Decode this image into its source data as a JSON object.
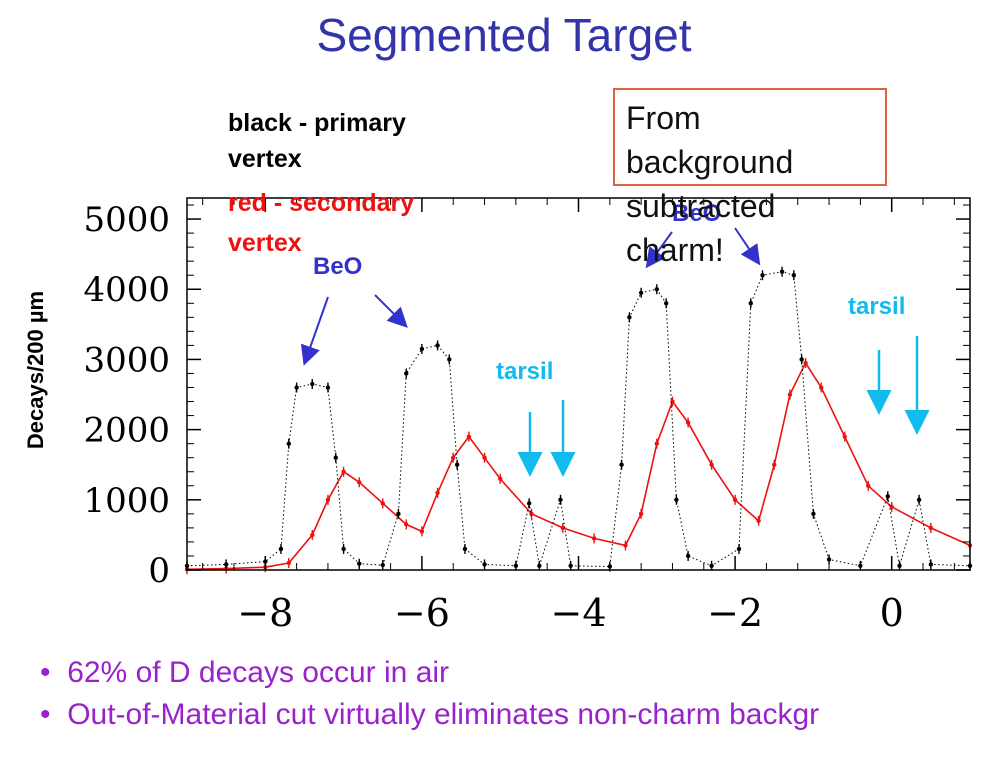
{
  "title": "Segmented Target",
  "legend": {
    "black_line1": "black - primary",
    "black_line2": "vertex",
    "red_line1": "red - secondary",
    "red_line2": "vertex"
  },
  "callout": [
    "From",
    "background",
    "subtracted",
    "charm!"
  ],
  "bullets": [
    "62% of D decays occur in air",
    "Out-of-Material cut virtually eliminates non-charm backgr"
  ],
  "colors": {
    "title": "#3333aa",
    "primary": "#000000",
    "secondary": "#ee1111",
    "beo": "#3333cc",
    "tarsil": "#11bbee",
    "bullet": "#9922cc"
  },
  "chart_data": {
    "type": "scatter",
    "title": "",
    "xlabel": "",
    "ylabel": "Decays/200 µm",
    "xlim": [
      -9,
      1
    ],
    "ylim": [
      0,
      5300
    ],
    "x_ticks": [
      -8,
      -6,
      -4,
      -2,
      0
    ],
    "x_tick_labels": [
      "−8",
      "−6",
      "−4",
      "−2",
      "0"
    ],
    "y_ticks": [
      0,
      1000,
      2000,
      3000,
      4000,
      5000
    ],
    "y_tick_labels": [
      "0",
      "1000",
      "2000",
      "3000",
      "4000",
      "5000"
    ],
    "series": [
      {
        "name": "primary vertex",
        "color": "#000000",
        "points": [
          [
            -9.0,
            60
          ],
          [
            -8.5,
            80
          ],
          [
            -8.0,
            120
          ],
          [
            -7.8,
            300
          ],
          [
            -7.7,
            1800
          ],
          [
            -7.6,
            2600
          ],
          [
            -7.4,
            2650
          ],
          [
            -7.2,
            2600
          ],
          [
            -7.1,
            1600
          ],
          [
            -7.0,
            300
          ],
          [
            -6.8,
            90
          ],
          [
            -6.5,
            70
          ],
          [
            -6.3,
            800
          ],
          [
            -6.2,
            2800
          ],
          [
            -6.0,
            3150
          ],
          [
            -5.8,
            3200
          ],
          [
            -5.65,
            3000
          ],
          [
            -5.55,
            1500
          ],
          [
            -5.45,
            300
          ],
          [
            -5.2,
            80
          ],
          [
            -4.8,
            60
          ],
          [
            -4.63,
            950
          ],
          [
            -4.5,
            60
          ],
          [
            -4.23,
            1000
          ],
          [
            -4.1,
            60
          ],
          [
            -3.6,
            50
          ],
          [
            -3.45,
            1500
          ],
          [
            -3.35,
            3600
          ],
          [
            -3.2,
            3950
          ],
          [
            -3.0,
            4000
          ],
          [
            -2.88,
            3800
          ],
          [
            -2.75,
            1000
          ],
          [
            -2.6,
            200
          ],
          [
            -2.3,
            60
          ],
          [
            -1.95,
            300
          ],
          [
            -1.8,
            3800
          ],
          [
            -1.65,
            4200
          ],
          [
            -1.4,
            4250
          ],
          [
            -1.25,
            4200
          ],
          [
            -1.15,
            3000
          ],
          [
            -1.0,
            800
          ],
          [
            -0.8,
            150
          ],
          [
            -0.4,
            60
          ],
          [
            -0.05,
            1050
          ],
          [
            0.1,
            60
          ],
          [
            0.35,
            1000
          ],
          [
            0.5,
            80
          ],
          [
            1.0,
            60
          ]
        ]
      },
      {
        "name": "secondary vertex",
        "color": "#ee1111",
        "points": [
          [
            -9.0,
            10
          ],
          [
            -8.5,
            20
          ],
          [
            -8.0,
            40
          ],
          [
            -7.7,
            100
          ],
          [
            -7.4,
            500
          ],
          [
            -7.2,
            1000
          ],
          [
            -7.0,
            1400
          ],
          [
            -6.8,
            1250
          ],
          [
            -6.5,
            950
          ],
          [
            -6.2,
            650
          ],
          [
            -6.0,
            550
          ],
          [
            -5.8,
            1100
          ],
          [
            -5.6,
            1600
          ],
          [
            -5.4,
            1900
          ],
          [
            -5.2,
            1600
          ],
          [
            -5.0,
            1300
          ],
          [
            -4.6,
            800
          ],
          [
            -4.2,
            600
          ],
          [
            -3.8,
            450
          ],
          [
            -3.4,
            350
          ],
          [
            -3.2,
            800
          ],
          [
            -3.0,
            1800
          ],
          [
            -2.8,
            2400
          ],
          [
            -2.6,
            2100
          ],
          [
            -2.3,
            1500
          ],
          [
            -2.0,
            1000
          ],
          [
            -1.7,
            700
          ],
          [
            -1.5,
            1500
          ],
          [
            -1.3,
            2500
          ],
          [
            -1.1,
            2950
          ],
          [
            -0.9,
            2600
          ],
          [
            -0.6,
            1900
          ],
          [
            -0.3,
            1200
          ],
          [
            0.0,
            900
          ],
          [
            0.5,
            600
          ],
          [
            1.0,
            350
          ]
        ]
      }
    ],
    "annotations": [
      {
        "text": "BeO",
        "color": "#3333cc",
        "arrow_targets_x": [
          -7.6,
          -5.95
        ]
      },
      {
        "text": "BeO",
        "color": "#3333cc",
        "arrow_targets_x": [
          -3.05,
          -1.6
        ]
      },
      {
        "text": "tarsil",
        "color": "#11bbee",
        "arrow_targets_x": [
          -4.65,
          -4.22
        ]
      },
      {
        "text": "tarsil",
        "color": "#11bbee",
        "arrow_targets_x": [
          -0.1,
          0.35
        ]
      }
    ]
  }
}
